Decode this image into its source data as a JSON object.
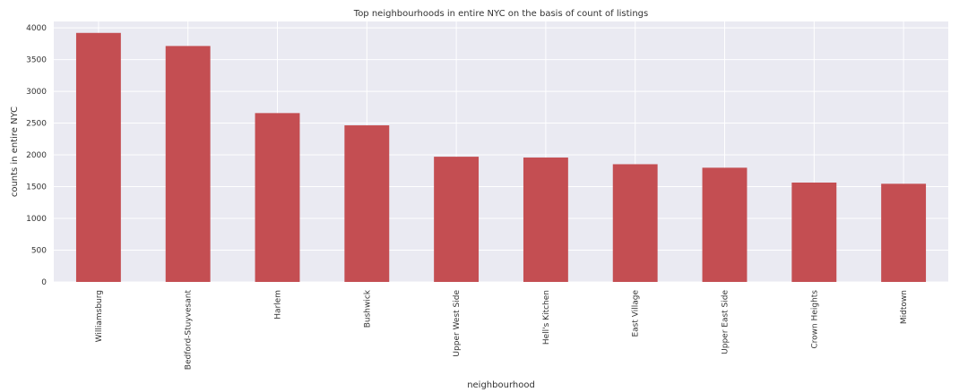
{
  "chart_data": {
    "type": "bar",
    "title": "Top neighbourhoods in entire NYC on the basis of count of listings",
    "xlabel": "neighbourhood",
    "ylabel": "counts in entire NYC",
    "categories": [
      "Williamsburg",
      "Bedford-Stuyvesant",
      "Harlem",
      "Bushwick",
      "Upper West Side",
      "Hell's Kitchen",
      "East Village",
      "Upper East Side",
      "Crown Heights",
      "Midtown"
    ],
    "values": [
      3920,
      3714,
      2658,
      2465,
      1971,
      1958,
      1853,
      1798,
      1564,
      1545
    ],
    "ylim": [
      0,
      4100
    ],
    "yticks": [
      0,
      500,
      1000,
      1500,
      2000,
      2500,
      3000,
      3500,
      4000
    ],
    "grid": true,
    "bar_color": "#c44e52",
    "background_color": "#eaeaf2",
    "grid_color": "#ffffff"
  }
}
